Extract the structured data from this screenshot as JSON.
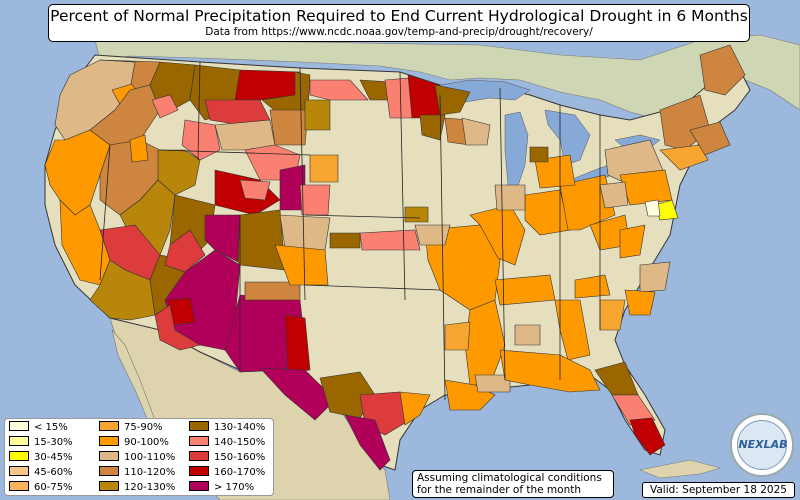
{
  "title": "Percent of Normal Precipitation Required to End Current Hydrological Drought in 6 Months",
  "subtitle": "Data from https://www.ncdc.noaa.gov/temp-and-precip/drought/recovery/",
  "note_line1": "Assuming climatological conditions",
  "note_line2": "for the remainder of the month",
  "valid": "Valid: September 18 2025",
  "logo_text": "NEXLAB",
  "colors": {
    "ocean": "#9db8dd",
    "land": "#e6dfbe",
    "mexico": "#ddd3ad",
    "canada": "#cfd6b4",
    "lakes": "#86a9d8"
  },
  "legend": [
    {
      "label": "< 15%",
      "color": "#ffffe0"
    },
    {
      "label": "15-30%",
      "color": "#ffff99"
    },
    {
      "label": "30-45%",
      "color": "#ffff00"
    },
    {
      "label": "45-60%",
      "color": "#f5c78a"
    },
    {
      "label": "60-75%",
      "color": "#f8b35c"
    },
    {
      "label": "75-90%",
      "color": "#f5a530"
    },
    {
      "label": "90-100%",
      "color": "#ff9900"
    },
    {
      "label": "100-110%",
      "color": "#deb887"
    },
    {
      "label": "110-120%",
      "color": "#cd853f"
    },
    {
      "label": "120-130%",
      "color": "#b8860b"
    },
    {
      "label": "130-140%",
      "color": "#996600"
    },
    {
      "label": "140-150%",
      "color": "#fa8072"
    },
    {
      "label": "150-160%",
      "color": "#dc3c3c"
    },
    {
      "label": "160-170%",
      "color": "#c00000"
    },
    {
      "label": "> 170%",
      "color": "#b0005a"
    }
  ]
}
